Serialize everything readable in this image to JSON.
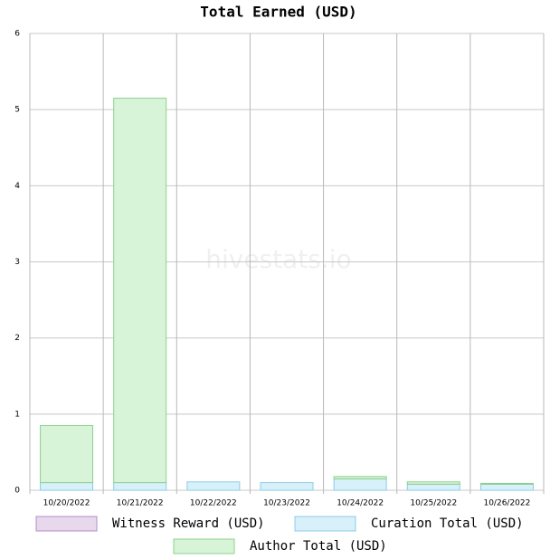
{
  "chart_data": {
    "type": "stacked-bar",
    "title": "Total Earned (USD)",
    "watermark": "hivestats.io",
    "categories": [
      "10/20/2022",
      "10/21/2022",
      "10/22/2022",
      "10/23/2022",
      "10/24/2022",
      "10/25/2022",
      "10/26/2022"
    ],
    "series": [
      {
        "name": "Witness Reward (USD)",
        "color": "#e8d8ec",
        "stroke": "#b48cc8",
        "values": [
          0,
          0,
          0,
          0,
          0,
          0,
          0
        ]
      },
      {
        "name": "Curation Total (USD)",
        "color": "#d8f0fa",
        "stroke": "#8ccce6",
        "values": [
          0.1,
          0.1,
          0.11,
          0.1,
          0.15,
          0.08,
          0.08
        ]
      },
      {
        "name": "Author Total (USD)",
        "color": "#d8f4d8",
        "stroke": "#8cd08c",
        "values": [
          0.75,
          5.05,
          0,
          0,
          0.03,
          0.03,
          0.01
        ]
      }
    ],
    "ylim": [
      0,
      6
    ],
    "yticks": [
      0,
      1,
      2,
      3,
      4,
      5,
      6
    ],
    "grid": true
  }
}
